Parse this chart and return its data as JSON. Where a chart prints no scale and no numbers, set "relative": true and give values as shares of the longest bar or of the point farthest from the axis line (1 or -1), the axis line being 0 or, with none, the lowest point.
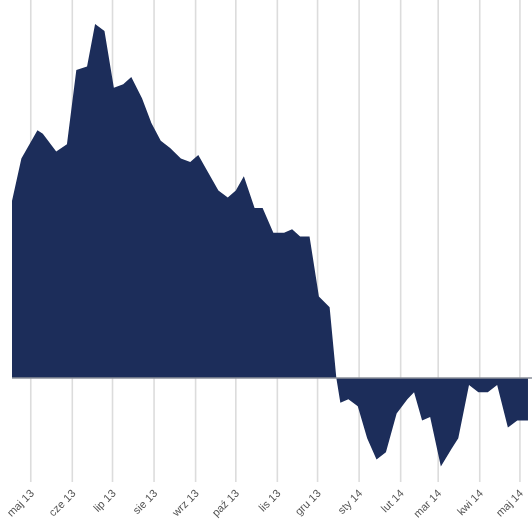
{
  "chart_data": {
    "type": "area",
    "relative": true,
    "grid": "x",
    "color": "#1c2d5a",
    "xlim": [
      "2013-04-17",
      "2014-05-10"
    ],
    "xticks": [
      {
        "value": "2013-05-01",
        "label": "maj 13"
      },
      {
        "value": "2013-06-01",
        "label": "cze 13"
      },
      {
        "value": "2013-07-01",
        "label": "lip 13"
      },
      {
        "value": "2013-08-01",
        "label": "sie 13"
      },
      {
        "value": "2013-09-01",
        "label": "wrz 13"
      },
      {
        "value": "2013-10-01",
        "label": "paź 13"
      },
      {
        "value": "2013-11-01",
        "label": "lis 13"
      },
      {
        "value": "2013-12-01",
        "label": "gru 13"
      },
      {
        "value": "2014-01-01",
        "label": "sty 14"
      },
      {
        "value": "2014-02-01",
        "label": "lut 14"
      },
      {
        "value": "2014-03-01",
        "label": "mar 14"
      },
      {
        "value": "2014-04-01",
        "label": "kwi 14"
      },
      {
        "value": "2014-05-01",
        "label": "maj 14"
      }
    ],
    "x": [
      "2013-04-17",
      "2013-04-24",
      "2013-05-06",
      "2013-05-10",
      "2013-05-20",
      "2013-05-28",
      "2013-06-04",
      "2013-06-12",
      "2013-06-18",
      "2013-06-25",
      "2013-07-02",
      "2013-07-09",
      "2013-07-15",
      "2013-07-23",
      "2013-07-30",
      "2013-08-06",
      "2013-08-13",
      "2013-08-21",
      "2013-08-28",
      "2013-09-03",
      "2013-09-09",
      "2013-09-18",
      "2013-09-25",
      "2013-10-01",
      "2013-10-07",
      "2013-10-15",
      "2013-10-21",
      "2013-10-29",
      "2013-11-06",
      "2013-11-12",
      "2013-11-18",
      "2013-11-25",
      "2013-12-02",
      "2013-12-10",
      "2013-12-15",
      "2013-12-18",
      "2013-12-24",
      "2013-12-31",
      "2014-01-07",
      "2014-01-14",
      "2014-01-21",
      "2014-01-29",
      "2014-02-06",
      "2014-02-11",
      "2014-02-17",
      "2014-02-23",
      "2014-03-03",
      "2014-03-11",
      "2014-03-16",
      "2014-03-24",
      "2014-03-31",
      "2014-04-07",
      "2014-04-14",
      "2014-04-22",
      "2014-04-29",
      "2014-05-07"
    ],
    "values": [
      0.5,
      0.62,
      0.7,
      0.69,
      0.64,
      0.66,
      0.87,
      0.88,
      1.0,
      0.98,
      0.82,
      0.83,
      0.85,
      0.79,
      0.72,
      0.67,
      0.65,
      0.62,
      0.61,
      0.63,
      0.59,
      0.53,
      0.51,
      0.53,
      0.57,
      0.48,
      0.48,
      0.41,
      0.41,
      0.42,
      0.4,
      0.4,
      0.23,
      0.2,
      0.0,
      -0.07,
      -0.06,
      -0.08,
      -0.17,
      -0.23,
      -0.21,
      -0.1,
      -0.06,
      -0.04,
      -0.12,
      -0.11,
      -0.25,
      -0.2,
      -0.17,
      -0.02,
      -0.04,
      -0.04,
      -0.02,
      -0.14,
      -0.12,
      -0.12
    ]
  }
}
